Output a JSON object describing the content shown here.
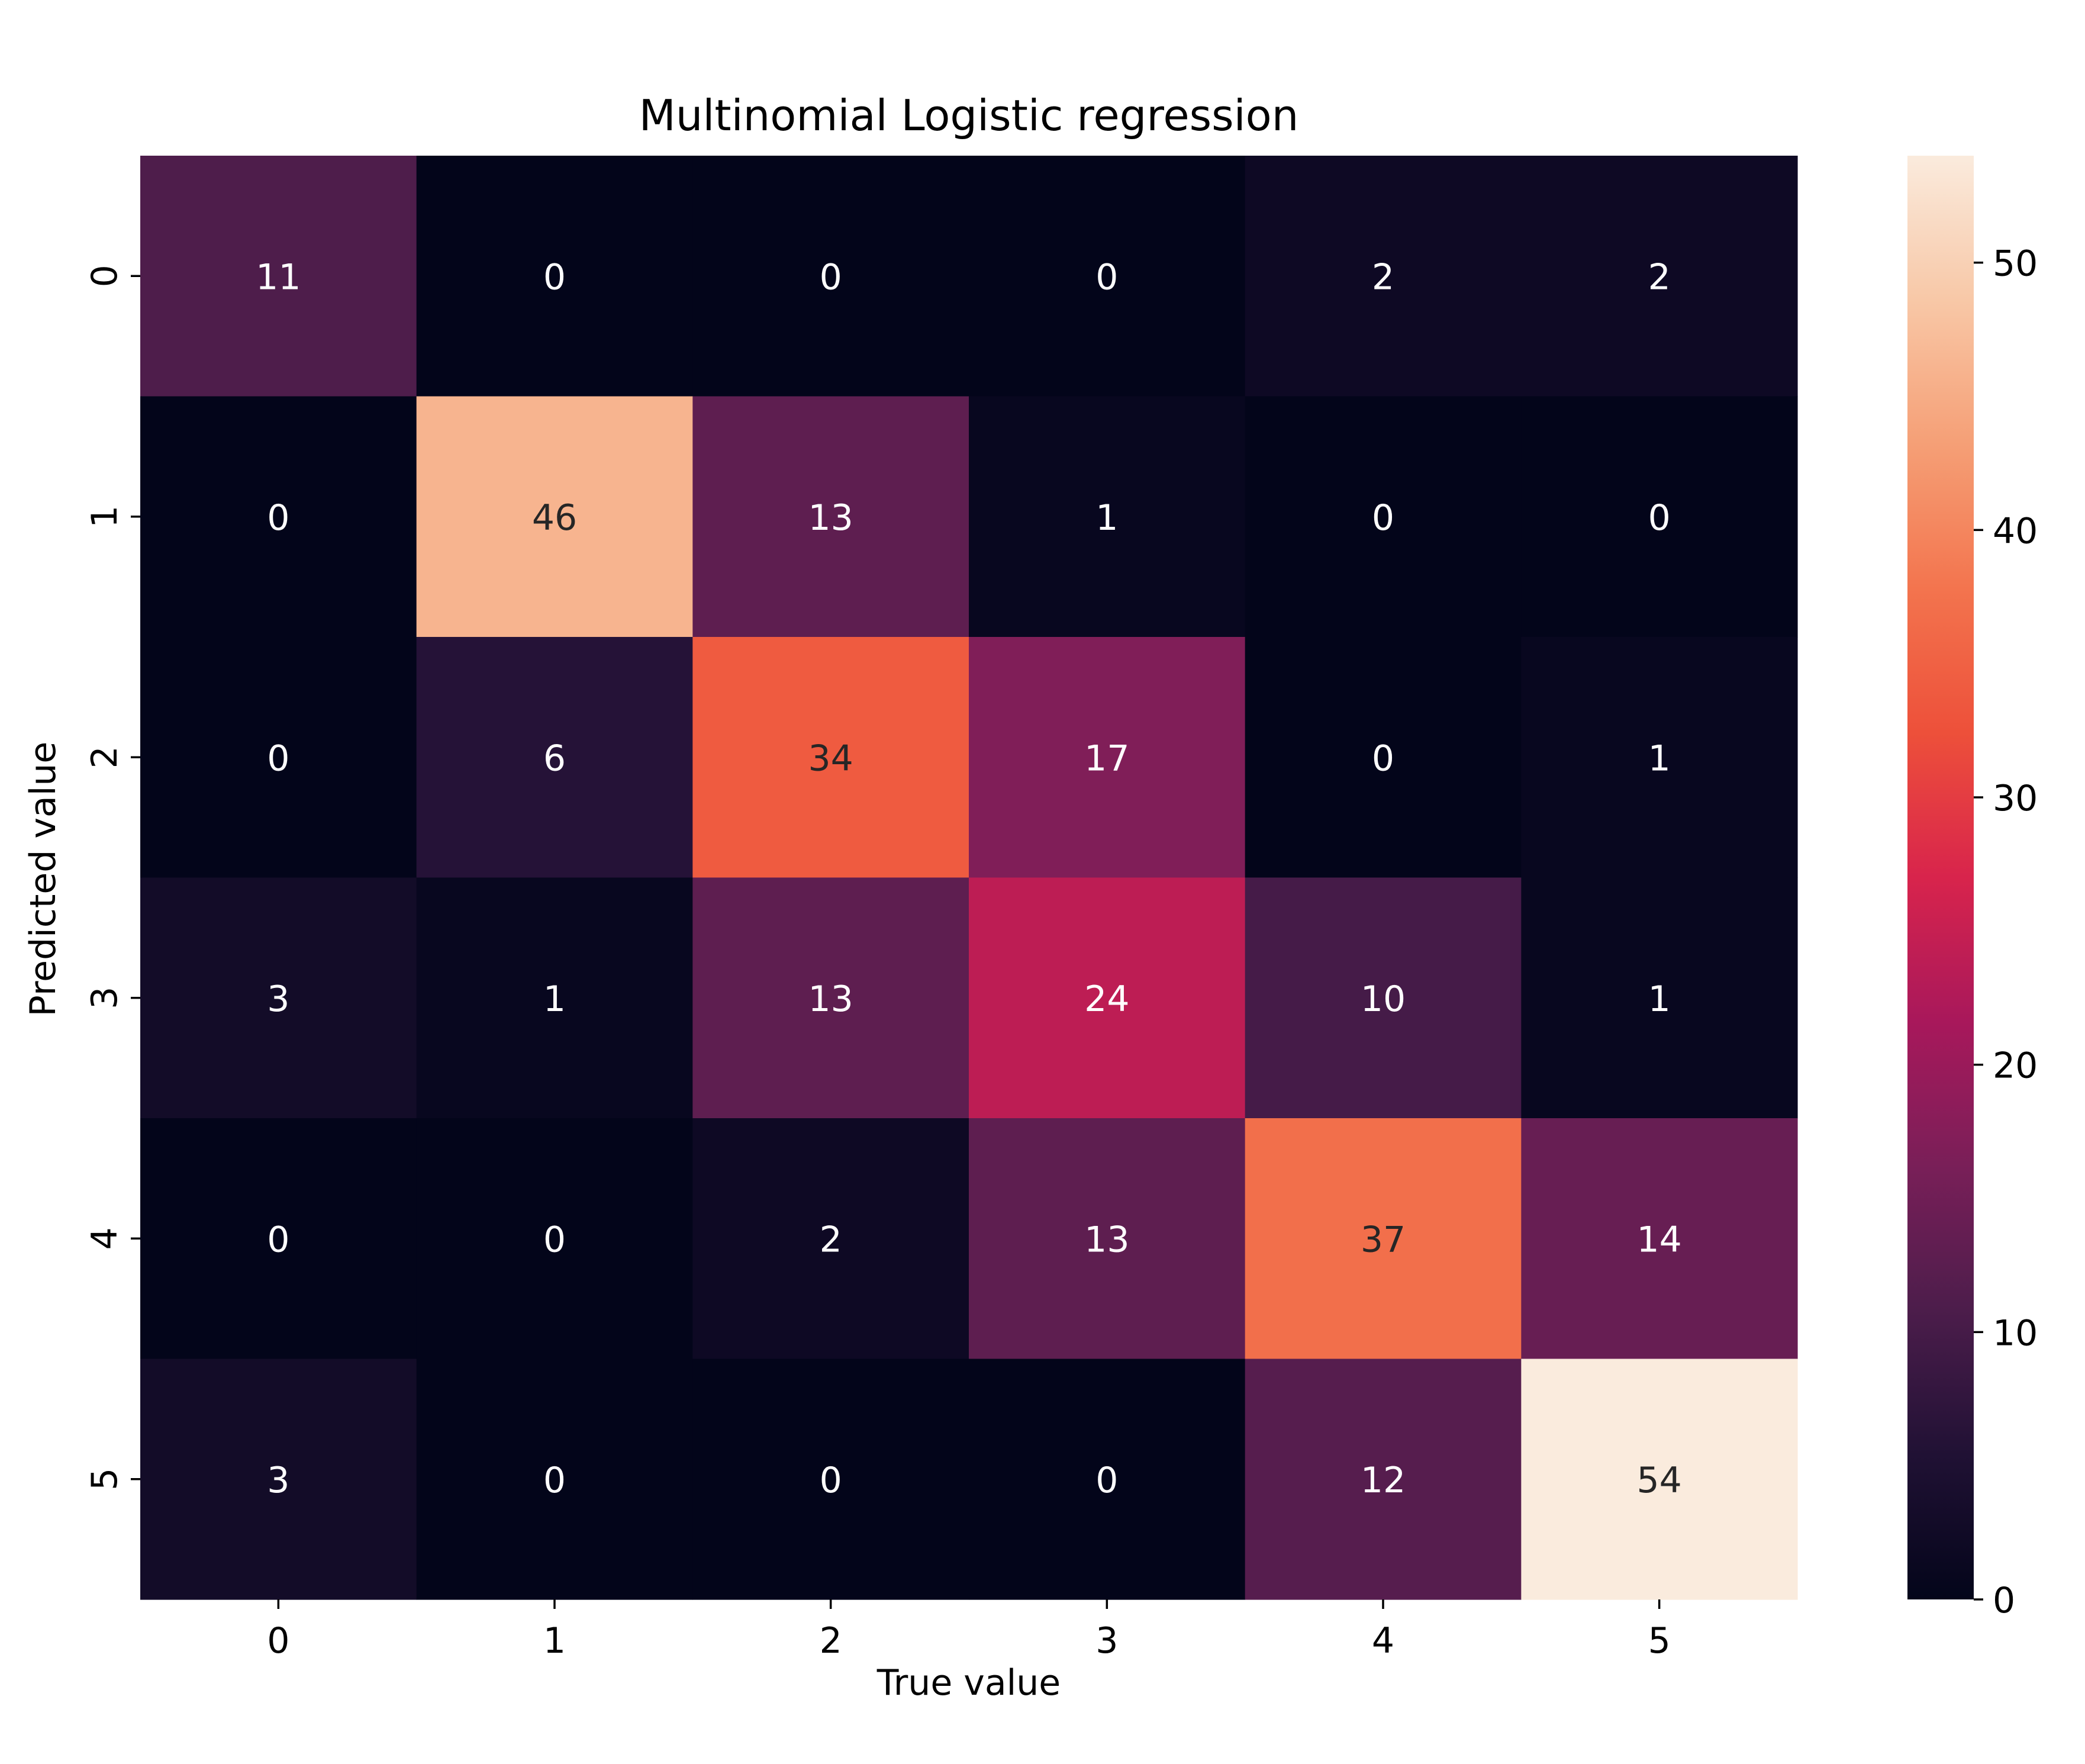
{
  "chart_data": {
    "type": "heatmap",
    "title": "Multinomial Logistic regression",
    "xlabel": "True value",
    "ylabel": "Predicted value",
    "x_categories": [
      "0",
      "1",
      "2",
      "3",
      "4",
      "5"
    ],
    "y_categories": [
      "0",
      "1",
      "2",
      "3",
      "4",
      "5"
    ],
    "values": [
      [
        11,
        0,
        0,
        0,
        2,
        2
      ],
      [
        0,
        46,
        13,
        1,
        0,
        0
      ],
      [
        0,
        6,
        34,
        17,
        0,
        1
      ],
      [
        3,
        1,
        13,
        24,
        10,
        1
      ],
      [
        0,
        0,
        2,
        13,
        37,
        14
      ],
      [
        3,
        0,
        0,
        0,
        12,
        54
      ]
    ],
    "colormap": "rocket",
    "colorbar": {
      "min": 0,
      "max": 54,
      "ticks": [
        0,
        10,
        20,
        30,
        40,
        50
      ]
    },
    "annotations_shown": true,
    "grid": false
  }
}
